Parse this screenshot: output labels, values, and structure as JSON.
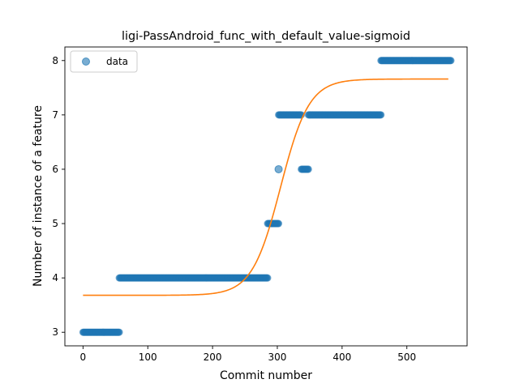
{
  "chart_data": {
    "type": "scatter",
    "title": "ligi-PassAndroid_func_with_default_value-sigmoid",
    "xlabel": "Commit number",
    "ylabel": "Number of instance of a feature",
    "xlim": [
      -28,
      593
    ],
    "ylim": [
      2.75,
      8.25
    ],
    "xticks": [
      0,
      100,
      200,
      300,
      400,
      500
    ],
    "yticks": [
      3,
      4,
      5,
      6,
      7,
      8
    ],
    "grid": false,
    "legend_position": "top-left",
    "series": [
      {
        "name": "data",
        "kind": "scatter",
        "color": "#1f77b4",
        "segments": [
          {
            "x_start": 0,
            "x_end": 56,
            "y": 3
          },
          {
            "x_start": 56,
            "x_end": 285,
            "y": 4
          },
          {
            "x_start": 285,
            "x_end": 302,
            "y": 5
          },
          {
            "x_start": 302,
            "x_end": 337,
            "y": 7
          },
          {
            "x_start": 337,
            "x_end": 348,
            "y": 6
          },
          {
            "x_start": 348,
            "x_end": 460,
            "y": 7
          },
          {
            "x_start": 460,
            "x_end": 568,
            "y": 8
          }
        ],
        "outliers": [
          {
            "x": 302,
            "y": 6
          }
        ]
      },
      {
        "kind": "line",
        "color": "#ff7f0e",
        "model": "sigmoid",
        "params": {
          "lower": 3.68,
          "upper": 7.66,
          "midpoint": 305,
          "scale": 22
        },
        "x_range": [
          0,
          565
        ]
      }
    ]
  }
}
